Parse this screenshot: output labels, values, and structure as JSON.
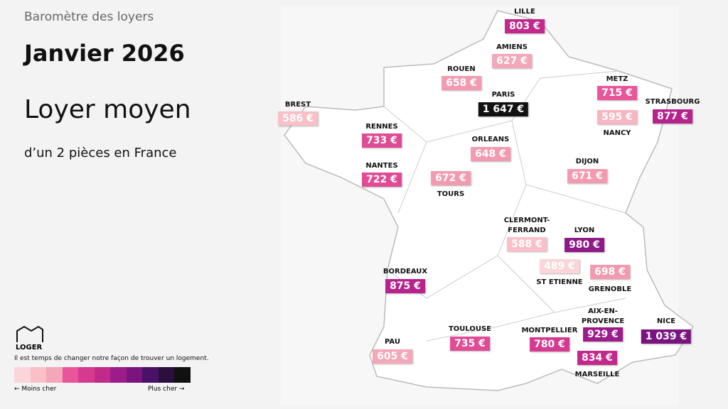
{
  "header": {
    "kicker": "Baromètre des loyers",
    "title": "Janvier 2026",
    "subtitle": "Loyer moyen",
    "caption": "d’un 2 pièces en France"
  },
  "cities": [
    {
      "name": "LILLE",
      "price": "803 €",
      "color": "#c2298a"
    },
    {
      "name": "AMIENS",
      "price": "627 €",
      "color": "#f4a7b9"
    },
    {
      "name": "ROUEN",
      "price": "658 €",
      "color": "#f29bb0"
    },
    {
      "name": "PARIS",
      "price": "1 647 €",
      "color": "#111111"
    },
    {
      "name": "METZ",
      "price": "715 €",
      "color": "#e8559a"
    },
    {
      "name": "BREST",
      "price": "586 €",
      "color": "#f9c0c8"
    },
    {
      "name": "STRASBOURG",
      "price": "877 €",
      "color": "#b5238c"
    },
    {
      "name": "NANCY",
      "price": "595 €",
      "color": "#f7b6c2"
    },
    {
      "name": "RENNES",
      "price": "733 €",
      "color": "#e14a94"
    },
    {
      "name": "ORLEANS",
      "price": "648 €",
      "color": "#f29bb0"
    },
    {
      "name": "DIJON",
      "price": "671 €",
      "color": "#f29bb0"
    },
    {
      "name": "NANTES",
      "price": "722 €",
      "color": "#e14a94"
    },
    {
      "name": "TOURS",
      "price": "672 €",
      "color": "#f29bb0"
    },
    {
      "name": "CLERMONT-FERRAND",
      "price": "588 €",
      "color": "#f9c0c8"
    },
    {
      "name": "LYON",
      "price": "980 €",
      "color": "#8d1a87"
    },
    {
      "name": "ST ETIENNE",
      "price": "489 €",
      "color": "#fbd5d8"
    },
    {
      "name": "GRENOBLE",
      "price": "698 €",
      "color": "#f29bb0"
    },
    {
      "name": "BORDEAUX",
      "price": "875 €",
      "color": "#b5238c"
    },
    {
      "name": "AIX-EN-PROVENCE",
      "price": "929 €",
      "color": "#9c1c8a"
    },
    {
      "name": "NICE",
      "price": "1 039 €",
      "color": "#7a1580"
    },
    {
      "name": "PAU",
      "price": "605 €",
      "color": "#f4a7b9"
    },
    {
      "name": "TOULOUSE",
      "price": "735 €",
      "color": "#e14a94"
    },
    {
      "name": "MONTPELLIER",
      "price": "780 €",
      "color": "#d63a90"
    },
    {
      "name": "MARSEILLE",
      "price": "834 €",
      "color": "#c2298a"
    }
  ],
  "legend": {
    "brand": "LOGER",
    "tagline": "Il est temps de changer notre façon de trouver un logement.",
    "low": "← Moins cher",
    "high": "Plus cher →",
    "colors": [
      "#fbd5d8",
      "#f9c0c8",
      "#f4a7b9",
      "#e8559a",
      "#d63a90",
      "#c2298a",
      "#9c1c8a",
      "#7a1580",
      "#4a1168",
      "#2a0f3f",
      "#111111"
    ]
  }
}
